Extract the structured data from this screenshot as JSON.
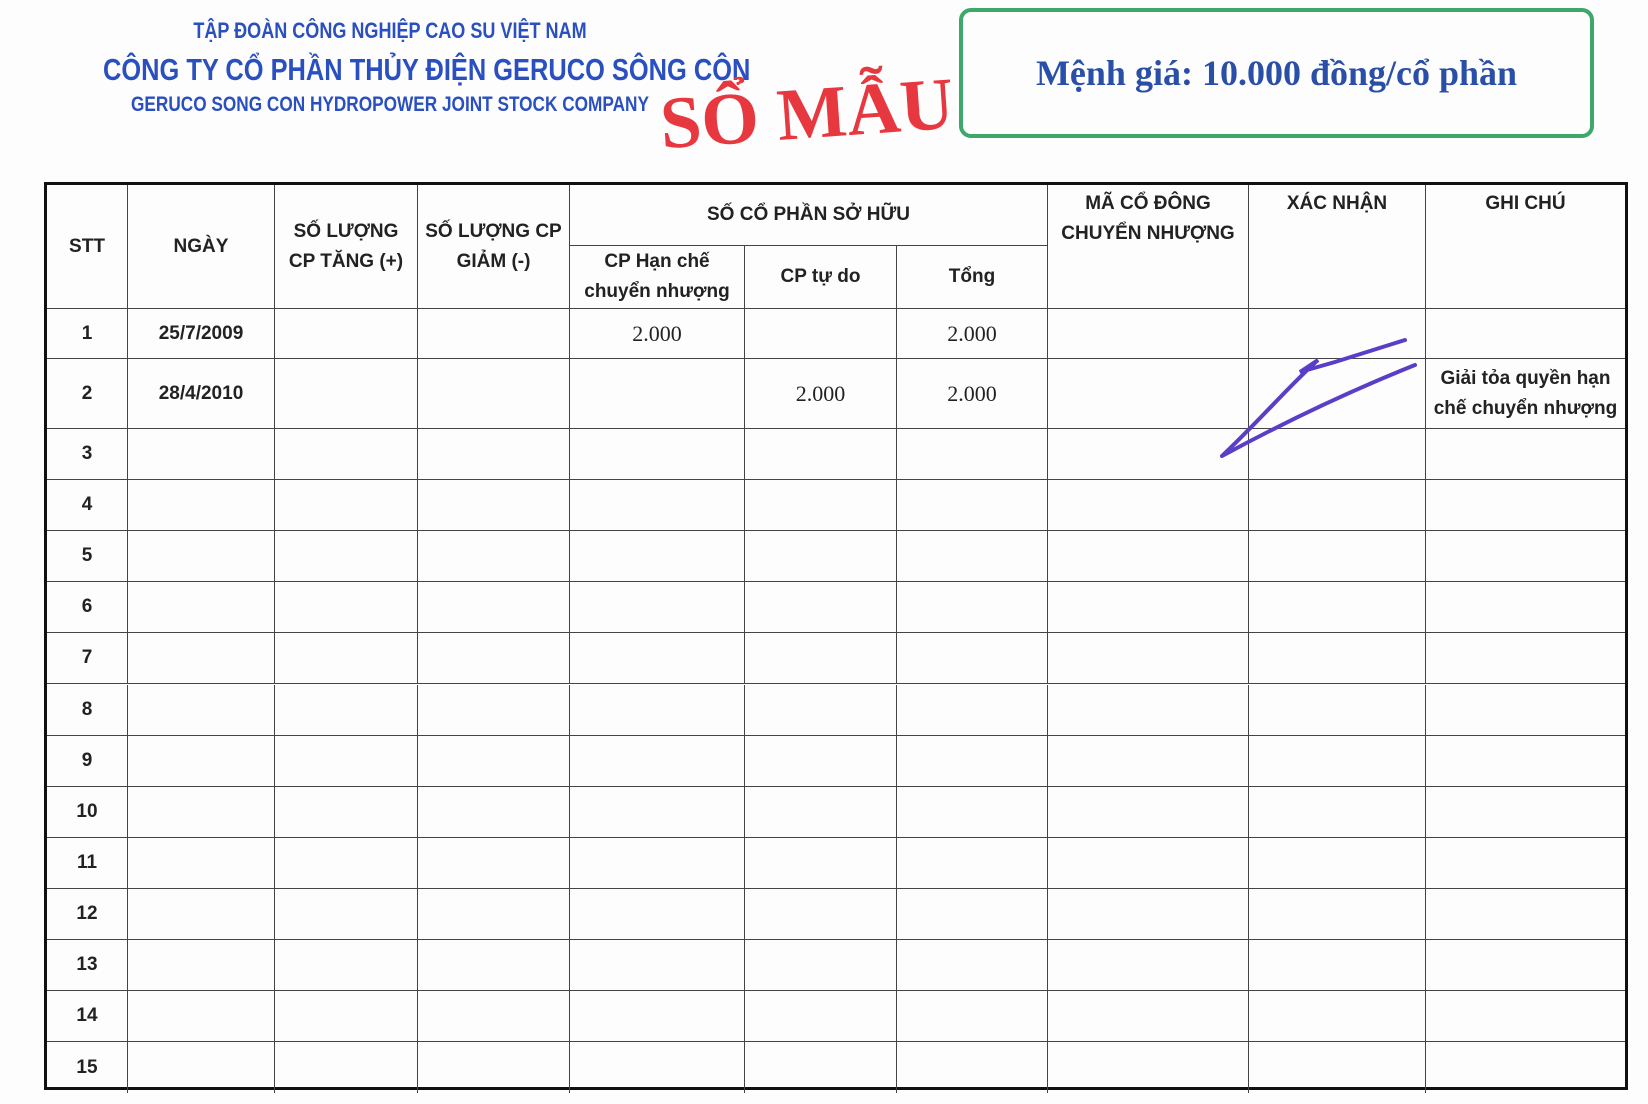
{
  "header": {
    "group": "TẬP ĐOÀN CÔNG NGHIỆP CAO SU VIỆT NAM",
    "company": "CÔNG TY CỔ PHẦN THỦY ĐIỆN GERUCO SÔNG CÔN",
    "company_en": "GERUCO SONG CON HYDROPOWER JOINT STOCK COMPANY",
    "stamp": "SỔ MẪU",
    "face_value": "Mệnh giá: 10.000 đồng/cổ phần"
  },
  "table": {
    "headers": {
      "stt": "STT",
      "date": "NGÀY",
      "increase": "SỐ LƯỢNG CP TĂNG (+)",
      "decrease": "SỐ LƯỢNG CP GIẢM (-)",
      "ownership": "SỐ CỔ PHẦN SỞ HỮU",
      "restricted": "CP Hạn chế chuyển nhượng",
      "free": "CP tự do",
      "total": "Tổng",
      "code": "MÃ CỔ ĐÔNG CHUYỂN NHƯỢNG",
      "confirm": "XÁC NHẬN",
      "note": "GHI CHÚ"
    },
    "rows": [
      {
        "stt": "1",
        "date": "25/7/2009",
        "restricted": "2.000",
        "total": "2.000"
      },
      {
        "stt": "2",
        "date": "28/4/2010",
        "free": "2.000",
        "total": "2.000",
        "note": "Giải tỏa quyền hạn chế chuyển nhượng"
      },
      {
        "stt": "3"
      },
      {
        "stt": "4"
      },
      {
        "stt": "5"
      },
      {
        "stt": "6"
      },
      {
        "stt": "7"
      },
      {
        "stt": "8"
      },
      {
        "stt": "9"
      },
      {
        "stt": "10"
      },
      {
        "stt": "11"
      },
      {
        "stt": "12"
      },
      {
        "stt": "13"
      },
      {
        "stt": "14"
      },
      {
        "stt": "15"
      }
    ]
  }
}
